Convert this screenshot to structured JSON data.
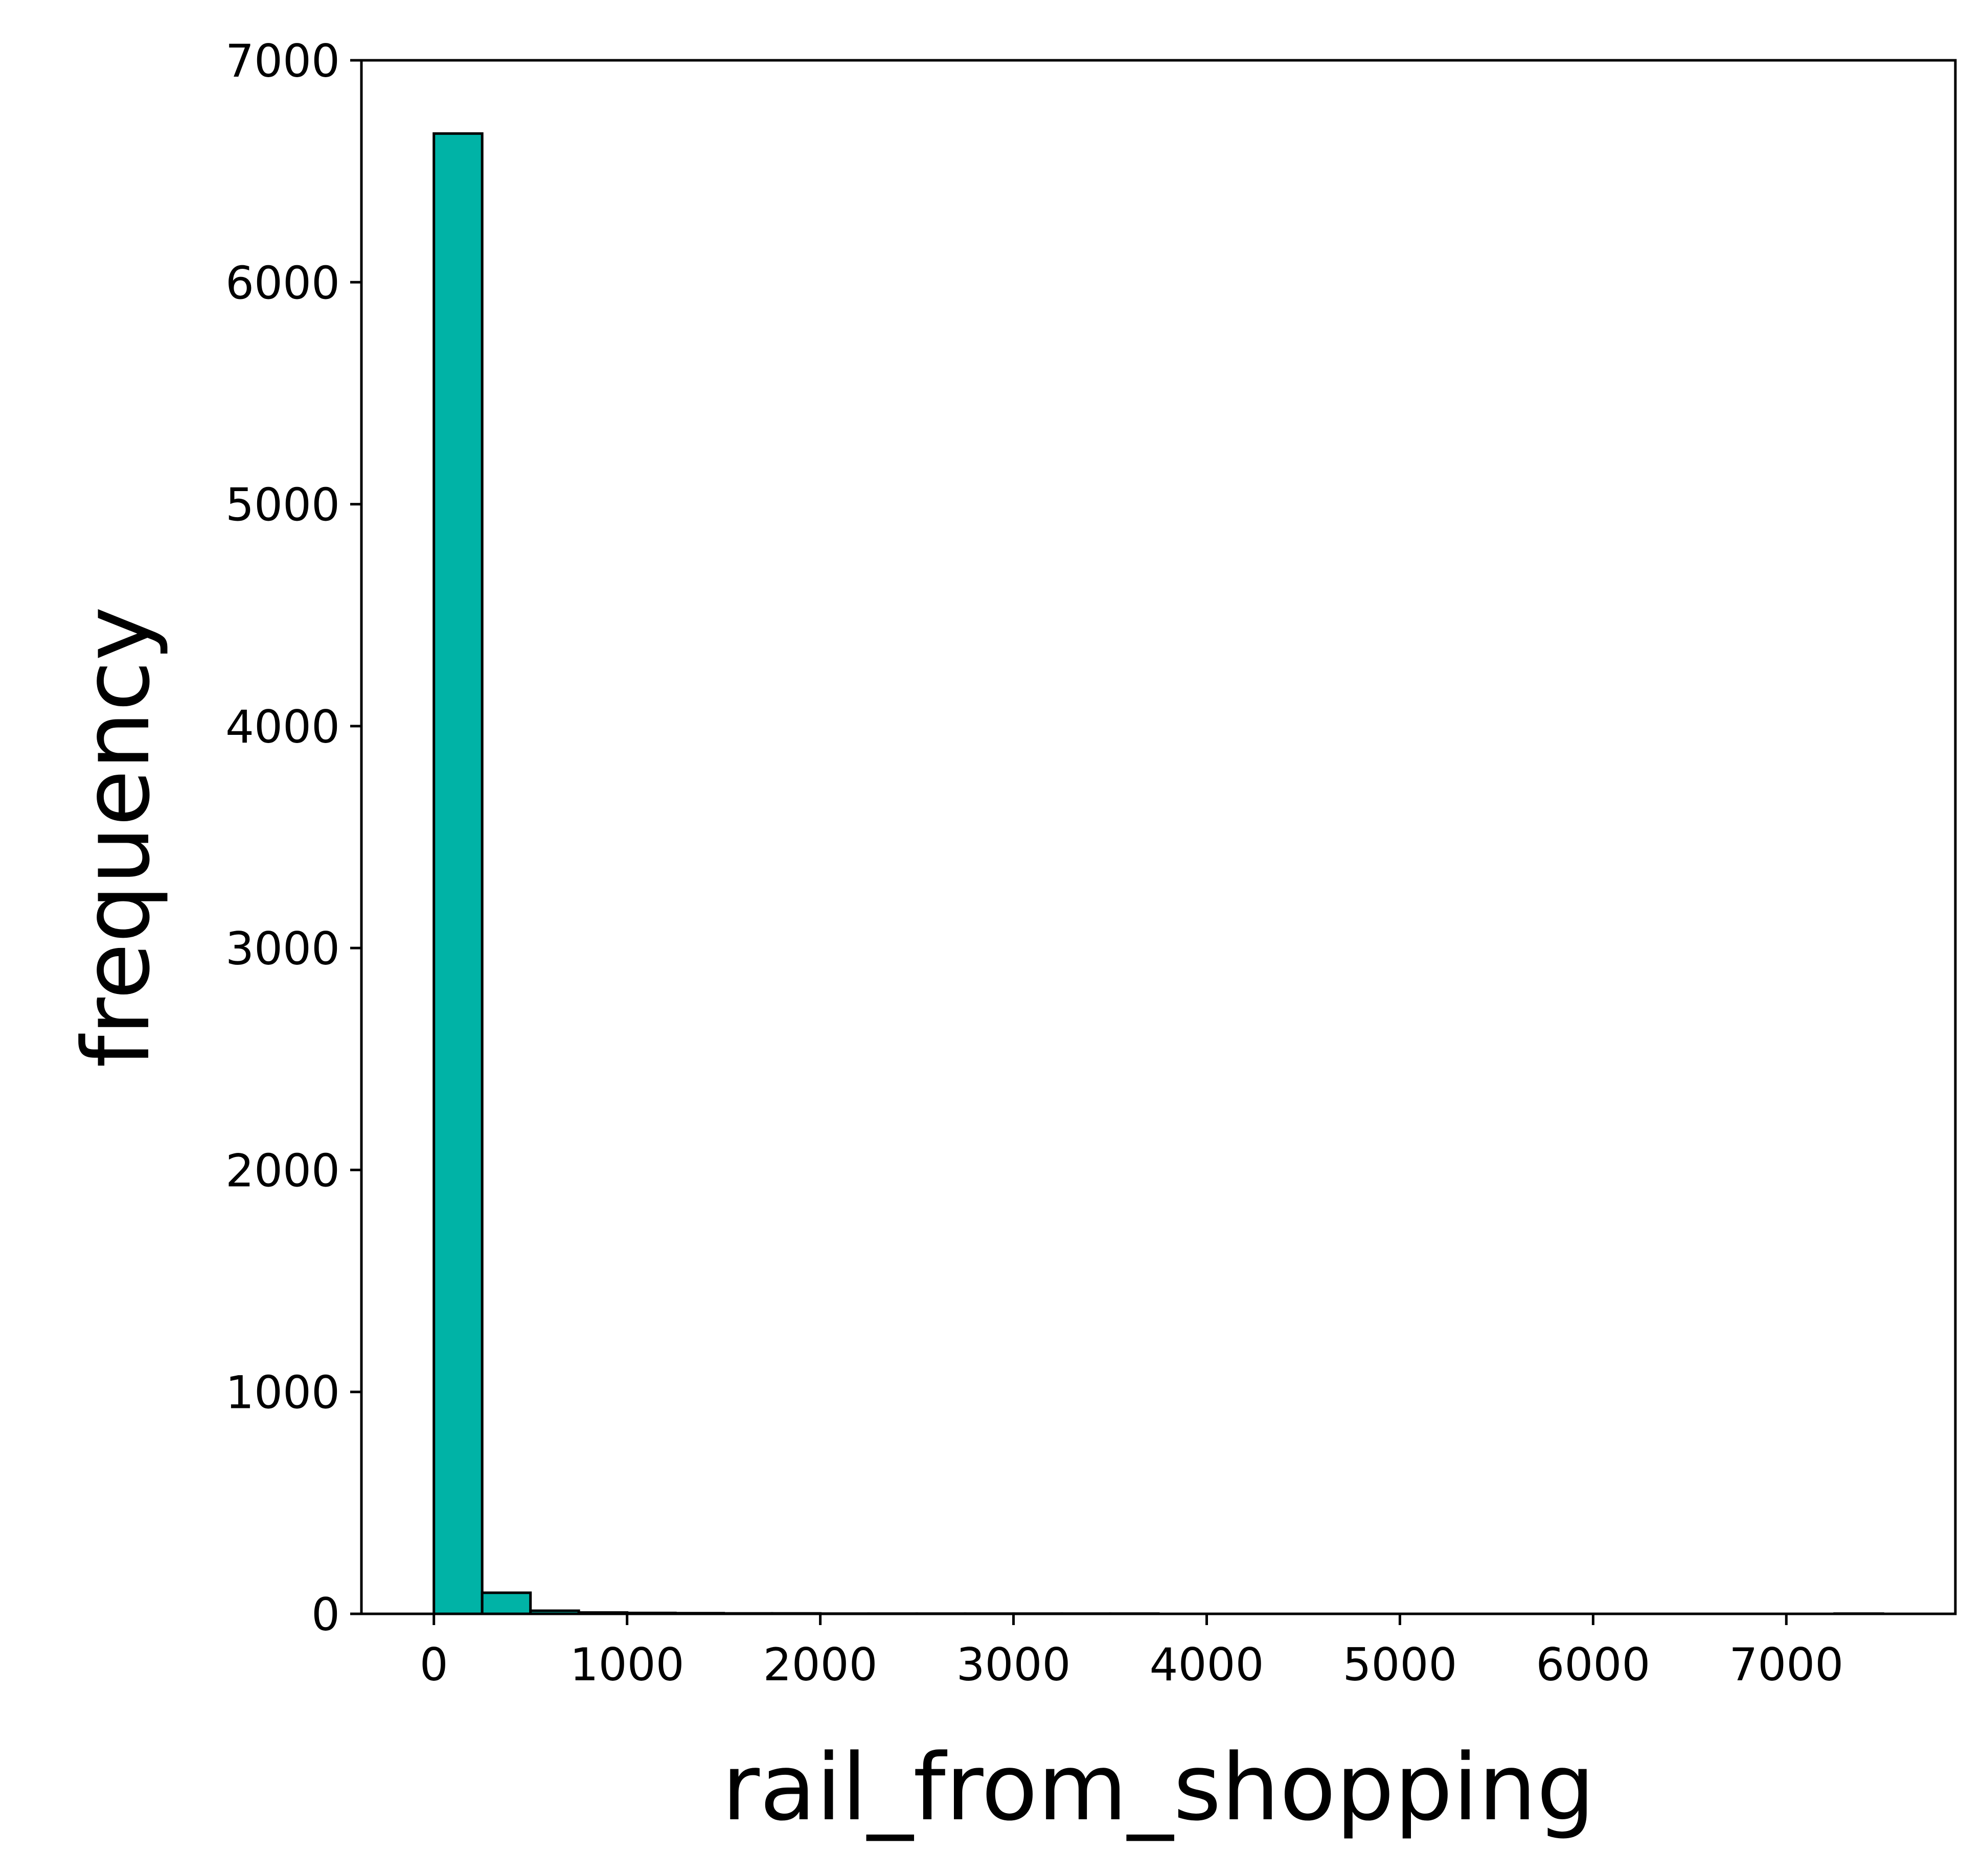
{
  "chart_data": {
    "type": "bar",
    "xlabel": "rail_from_shopping",
    "ylabel": "frequency",
    "xlim": [
      -375,
      7875
    ],
    "ylim": [
      0,
      7000
    ],
    "xticks": [
      0,
      1000,
      2000,
      3000,
      4000,
      5000,
      6000,
      7000
    ],
    "yticks": [
      0,
      1000,
      2000,
      3000,
      4000,
      5000,
      6000,
      7000
    ],
    "bar_color": "#00b3a6",
    "edge_color": "#000000",
    "bin_edges": [
      0,
      250,
      500,
      750,
      1000,
      1250,
      1500,
      1750,
      2000,
      2250,
      2500,
      2750,
      3000,
      3250,
      3500,
      3750,
      4000,
      4250,
      4500,
      4750,
      5000,
      5250,
      5500,
      5750,
      6000,
      6250,
      6500,
      6750,
      7000,
      7250,
      7500
    ],
    "values": [
      6670,
      95,
      14,
      6,
      4,
      3,
      2,
      2,
      1,
      1,
      1,
      1,
      1,
      1,
      1,
      0,
      0,
      0,
      0,
      0,
      0,
      0,
      0,
      0,
      0,
      0,
      0,
      0,
      0,
      1
    ],
    "grid": false
  }
}
